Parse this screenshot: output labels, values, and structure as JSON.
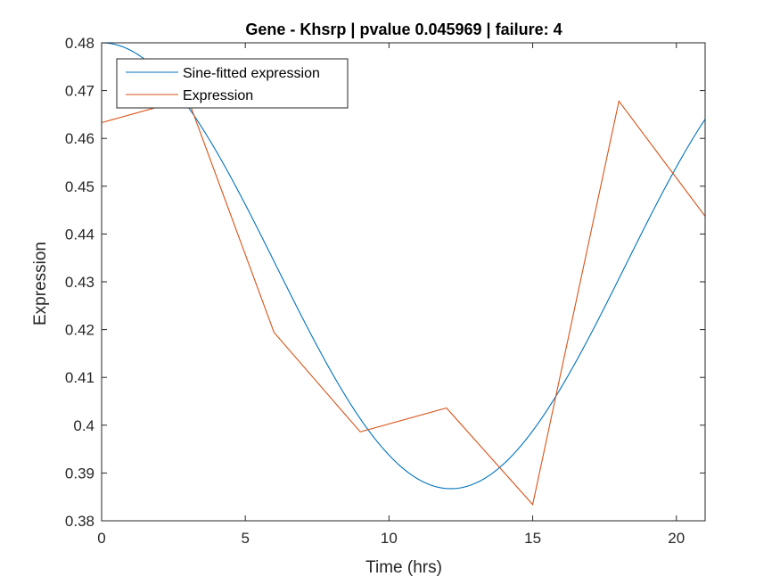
{
  "chart_data": {
    "type": "line",
    "title": "Gene - Khsrp | pvalue 0.045969 | failure: 4",
    "xlabel": "Time (hrs)",
    "ylabel": "Expression",
    "xlim": [
      0,
      21
    ],
    "ylim": [
      0.38,
      0.48
    ],
    "xticks": [
      0,
      5,
      10,
      15,
      20
    ],
    "xtick_labels": [
      "0",
      "5",
      "10",
      "15",
      "20"
    ],
    "yticks": [
      0.38,
      0.39,
      0.4,
      0.41,
      0.42,
      0.43,
      0.44,
      0.45,
      0.46,
      0.47,
      0.48
    ],
    "ytick_labels": [
      "0.38",
      "0.39",
      "0.4",
      "0.41",
      "0.42",
      "0.43",
      "0.44",
      "0.45",
      "0.46",
      "0.47",
      "0.48"
    ],
    "grid": false,
    "legend_position": "top-left",
    "series": [
      {
        "name": "Sine-fitted expression",
        "color": "#0072BD",
        "style": "sine",
        "mean": 0.43336,
        "amplitude": 0.04664,
        "period_hrs": 24.3,
        "peak_time_hrs": 0.0,
        "x": [
          0,
          3,
          6,
          9,
          12,
          15,
          18,
          21
        ],
        "y": [
          0.48,
          0.4672,
          0.4355,
          0.4041,
          0.3867,
          0.3979,
          0.4286,
          0.4645
        ]
      },
      {
        "name": "Expression",
        "color": "#D95319",
        "style": "linear",
        "x": [
          0,
          3,
          6,
          9,
          12,
          15,
          18,
          21
        ],
        "y": [
          0.4633,
          0.4683,
          0.4194,
          0.3986,
          0.4036,
          0.3834,
          0.4678,
          0.4437
        ]
      }
    ]
  }
}
